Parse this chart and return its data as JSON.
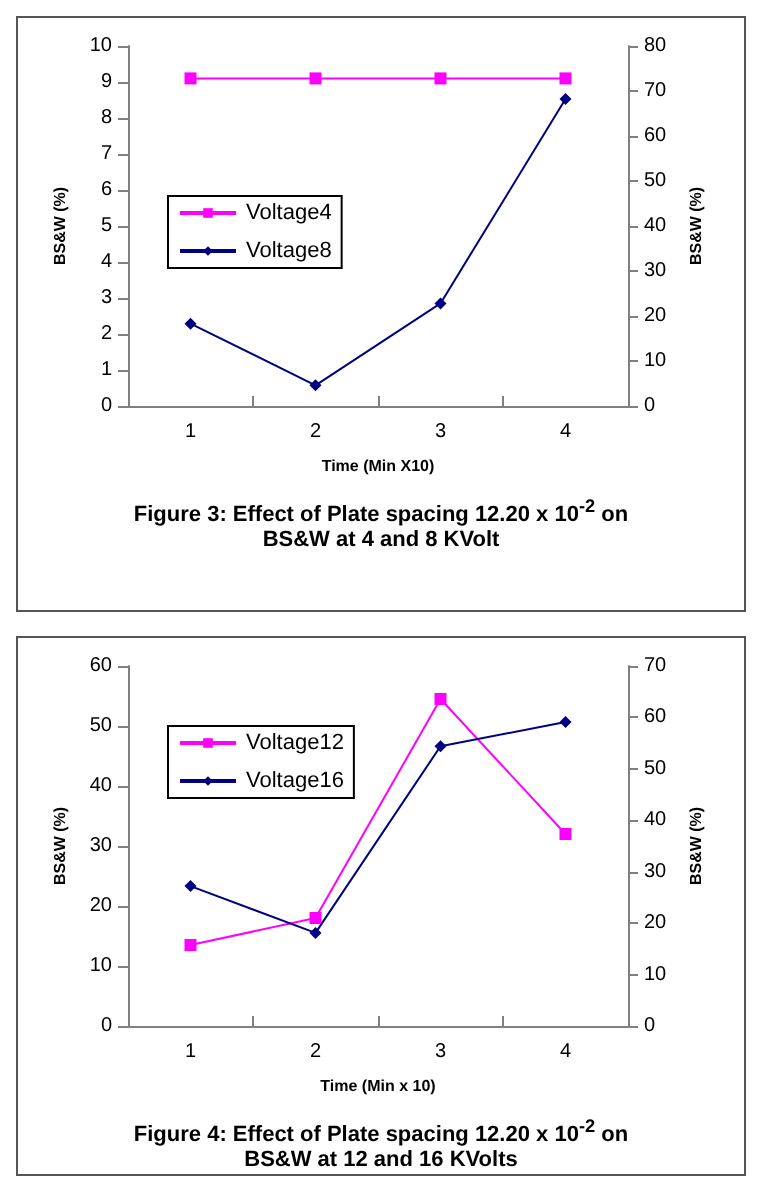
{
  "chart_data": [
    {
      "type": "line",
      "title": "Figure 3: Effect of Plate spacing 12.20 x 10$^{-2}$ on BS&W at 4 and 8 KVolt",
      "xlabel": "Time (Min X10)",
      "ylabel": "BS&W (%)",
      "y2label": "BS&W (%)",
      "categories": [
        "1",
        "2",
        "3",
        "4"
      ],
      "series": [
        {
          "name": "Voltage4",
          "color": "#ff00ff",
          "marker": "square",
          "values": [
            9.1,
            9.1,
            9.1,
            9.1
          ]
        },
        {
          "name": "Voltage8",
          "color": "#000080",
          "marker": "diamond",
          "axis": "y2",
          "values": [
            18.3,
            4.6,
            22.8,
            68.2
          ]
        }
      ],
      "ylim": [
        0,
        10
      ],
      "yticks": [
        0,
        1,
        2,
        3,
        4,
        5,
        6,
        7,
        8,
        9,
        10
      ],
      "y2lim": [
        0,
        80
      ],
      "y2ticks": [
        0,
        10,
        20,
        30,
        40,
        50,
        60,
        70,
        80
      ],
      "grid": false,
      "legend": "left"
    },
    {
      "type": "line",
      "title": "Figure 4: Effect of Plate spacing 12.20 x 10$^{-2}$ on BS&W at 12 and 16 KVolts",
      "xlabel": "Time (Min x 10)",
      "ylabel": "BS&W (%)",
      "y2label": "BS&W (%)",
      "categories": [
        "1",
        "2",
        "3",
        "4"
      ],
      "series": [
        {
          "name": "Voltage12",
          "color": "#ff00ff",
          "marker": "square",
          "values": [
            13.5,
            18,
            54.5,
            32
          ]
        },
        {
          "name": "Voltage16",
          "color": "#000080",
          "marker": "diamond",
          "axis": "y2",
          "values": [
            27.2,
            18.1,
            54.4,
            59.1
          ]
        }
      ],
      "ylim": [
        0,
        60
      ],
      "yticks": [
        0,
        10,
        20,
        30,
        40,
        50,
        60
      ],
      "y2lim": [
        0,
        70
      ],
      "y2ticks": [
        0,
        10,
        20,
        30,
        40,
        50,
        60,
        70
      ],
      "grid": false,
      "legend": "top left"
    }
  ]
}
